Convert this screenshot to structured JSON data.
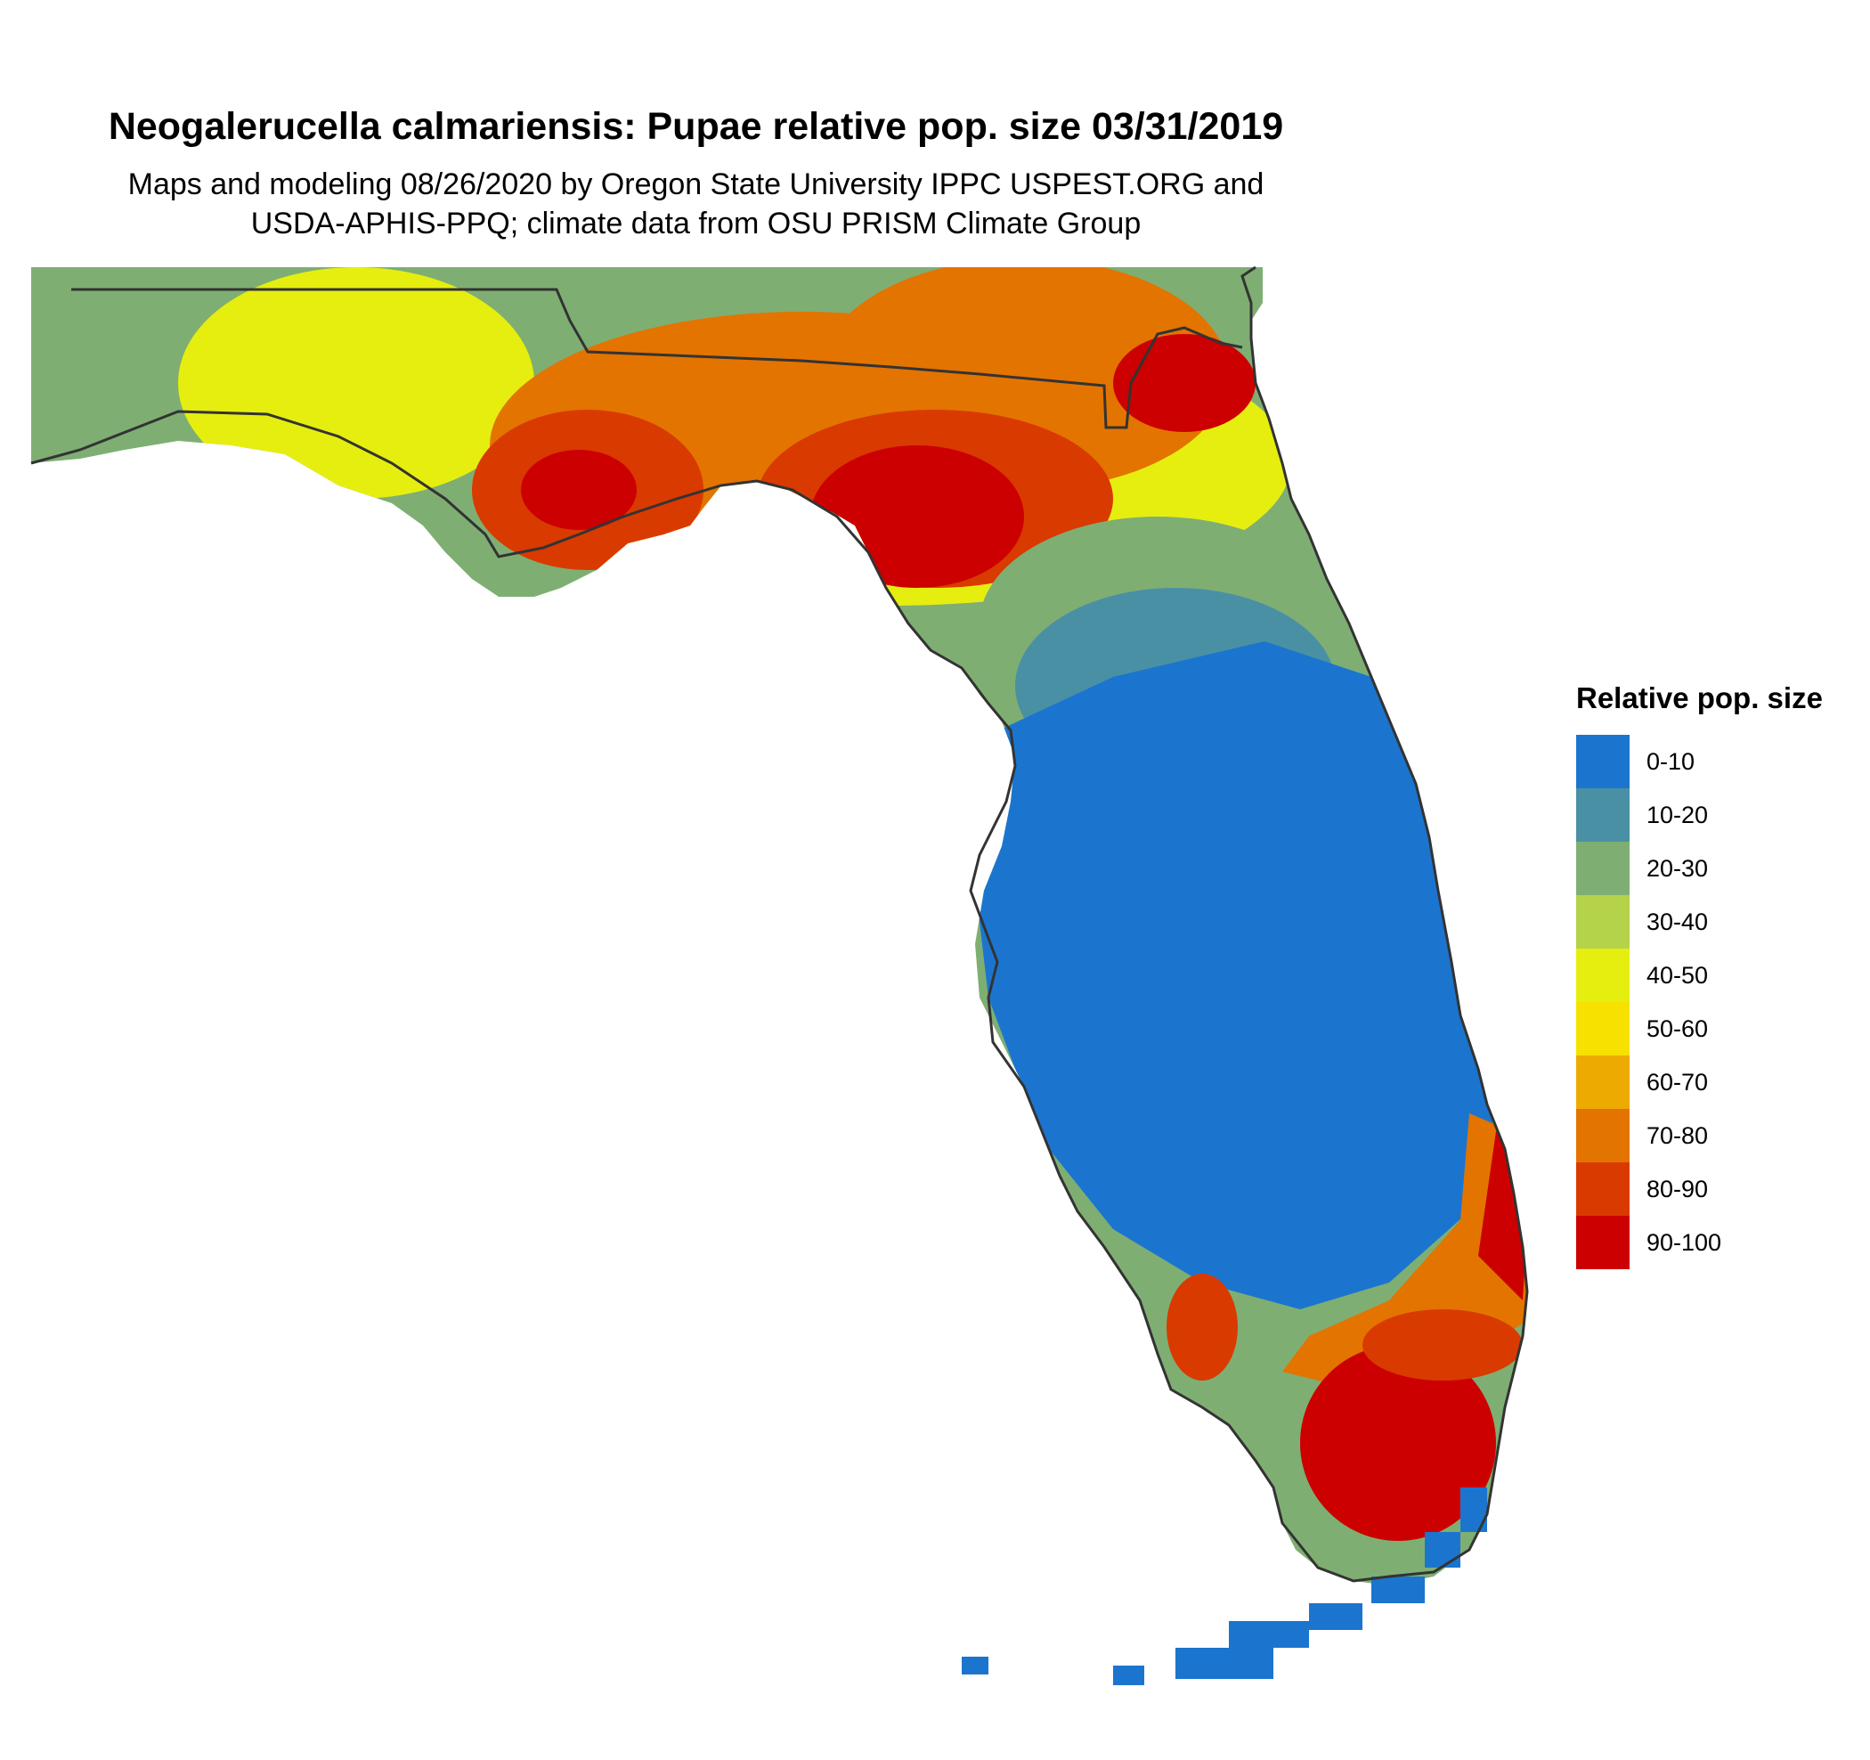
{
  "map": {
    "title": "Neogalerucella calmariensis: Pupae relative pop. size 03/31/2019",
    "subtitle_line1": "Maps and modeling 08/26/2020 by Oregon State University IPPC USPEST.ORG and",
    "subtitle_line2": "USDA-APHIS-PPQ; climate data from OSU PRISM Climate Group"
  },
  "legend": {
    "title": "Relative pop. size",
    "items": [
      {
        "label": "0-10",
        "color": "#1b75cf"
      },
      {
        "label": "10-20",
        "color": "#4a90a4"
      },
      {
        "label": "20-30",
        "color": "#7fae73"
      },
      {
        "label": "30-40",
        "color": "#b4d24a"
      },
      {
        "label": "40-50",
        "color": "#e6ee10"
      },
      {
        "label": "50-60",
        "color": "#f6e100"
      },
      {
        "label": "60-70",
        "color": "#edaa00"
      },
      {
        "label": "70-80",
        "color": "#e37400"
      },
      {
        "label": "80-90",
        "color": "#d93a00"
      },
      {
        "label": "90-100",
        "color": "#cc0000"
      }
    ]
  }
}
